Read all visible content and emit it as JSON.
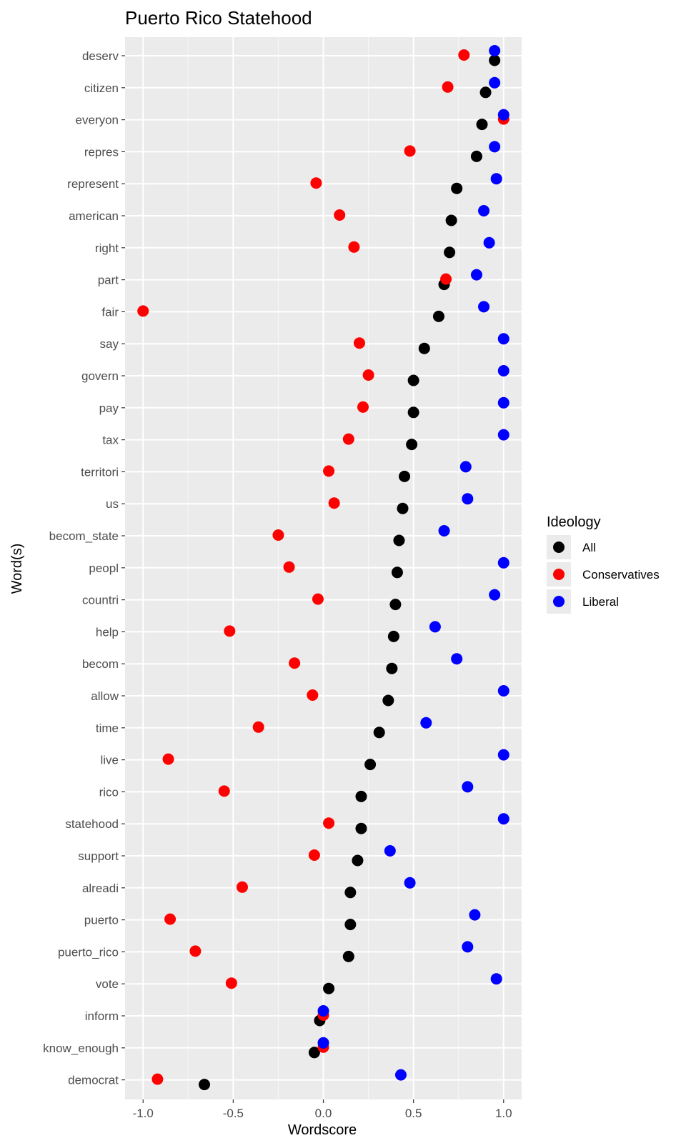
{
  "chart_data": {
    "type": "scatter",
    "title": "Puerto Rico Statehood",
    "xlabel": "Wordscore",
    "ylabel": "Word(s)",
    "xlim": [
      -1.1,
      1.1
    ],
    "x_ticks": [
      -1.0,
      -0.5,
      0.0,
      0.5,
      1.0
    ],
    "x_tick_labels": [
      "-1.0",
      "-0.5",
      "0.0",
      "0.5",
      "1.0"
    ],
    "grid": true,
    "legend_title": "Ideology",
    "legend_position": "right",
    "categories": [
      "deserv",
      "citizen",
      "everyon",
      "repres",
      "represent",
      "american",
      "right",
      "part",
      "fair",
      "say",
      "govern",
      "pay",
      "tax",
      "territori",
      "us",
      "becom_state",
      "peopl",
      "countri",
      "help",
      "becom",
      "allow",
      "time",
      "live",
      "rico",
      "statehood",
      "support",
      "alreadi",
      "puerto",
      "puerto_rico",
      "vote",
      "inform",
      "know_enough",
      "democrat"
    ],
    "series": [
      {
        "name": "All",
        "color": "#000000",
        "values": [
          0.95,
          0.9,
          0.88,
          0.85,
          0.74,
          0.71,
          0.7,
          0.67,
          0.64,
          0.56,
          0.5,
          0.5,
          0.49,
          0.45,
          0.44,
          0.42,
          0.41,
          0.4,
          0.39,
          0.38,
          0.36,
          0.31,
          0.26,
          0.21,
          0.21,
          0.19,
          0.15,
          0.15,
          0.14,
          0.03,
          -0.02,
          -0.05,
          -0.66
        ]
      },
      {
        "name": "Conservatives",
        "color": "#FF0000",
        "values": [
          0.78,
          0.69,
          1.0,
          0.48,
          -0.04,
          0.09,
          0.17,
          0.68,
          -1.0,
          0.2,
          0.25,
          0.22,
          0.14,
          0.03,
          0.06,
          -0.25,
          -0.19,
          -0.03,
          -0.52,
          -0.16,
          -0.06,
          -0.36,
          -0.86,
          -0.55,
          0.03,
          -0.05,
          -0.45,
          -0.85,
          -0.71,
          -0.51,
          0.0,
          0.0,
          -0.92
        ]
      },
      {
        "name": "Liberal",
        "color": "#0000FF",
        "values": [
          0.95,
          0.95,
          1.0,
          0.95,
          0.96,
          0.89,
          0.92,
          0.85,
          0.89,
          1.0,
          1.0,
          1.0,
          1.0,
          0.79,
          0.8,
          0.67,
          1.0,
          0.95,
          0.62,
          0.74,
          1.0,
          0.57,
          1.0,
          0.8,
          1.0,
          0.37,
          0.48,
          0.84,
          0.8,
          0.96,
          0.0,
          0.0,
          0.43
        ]
      }
    ]
  }
}
